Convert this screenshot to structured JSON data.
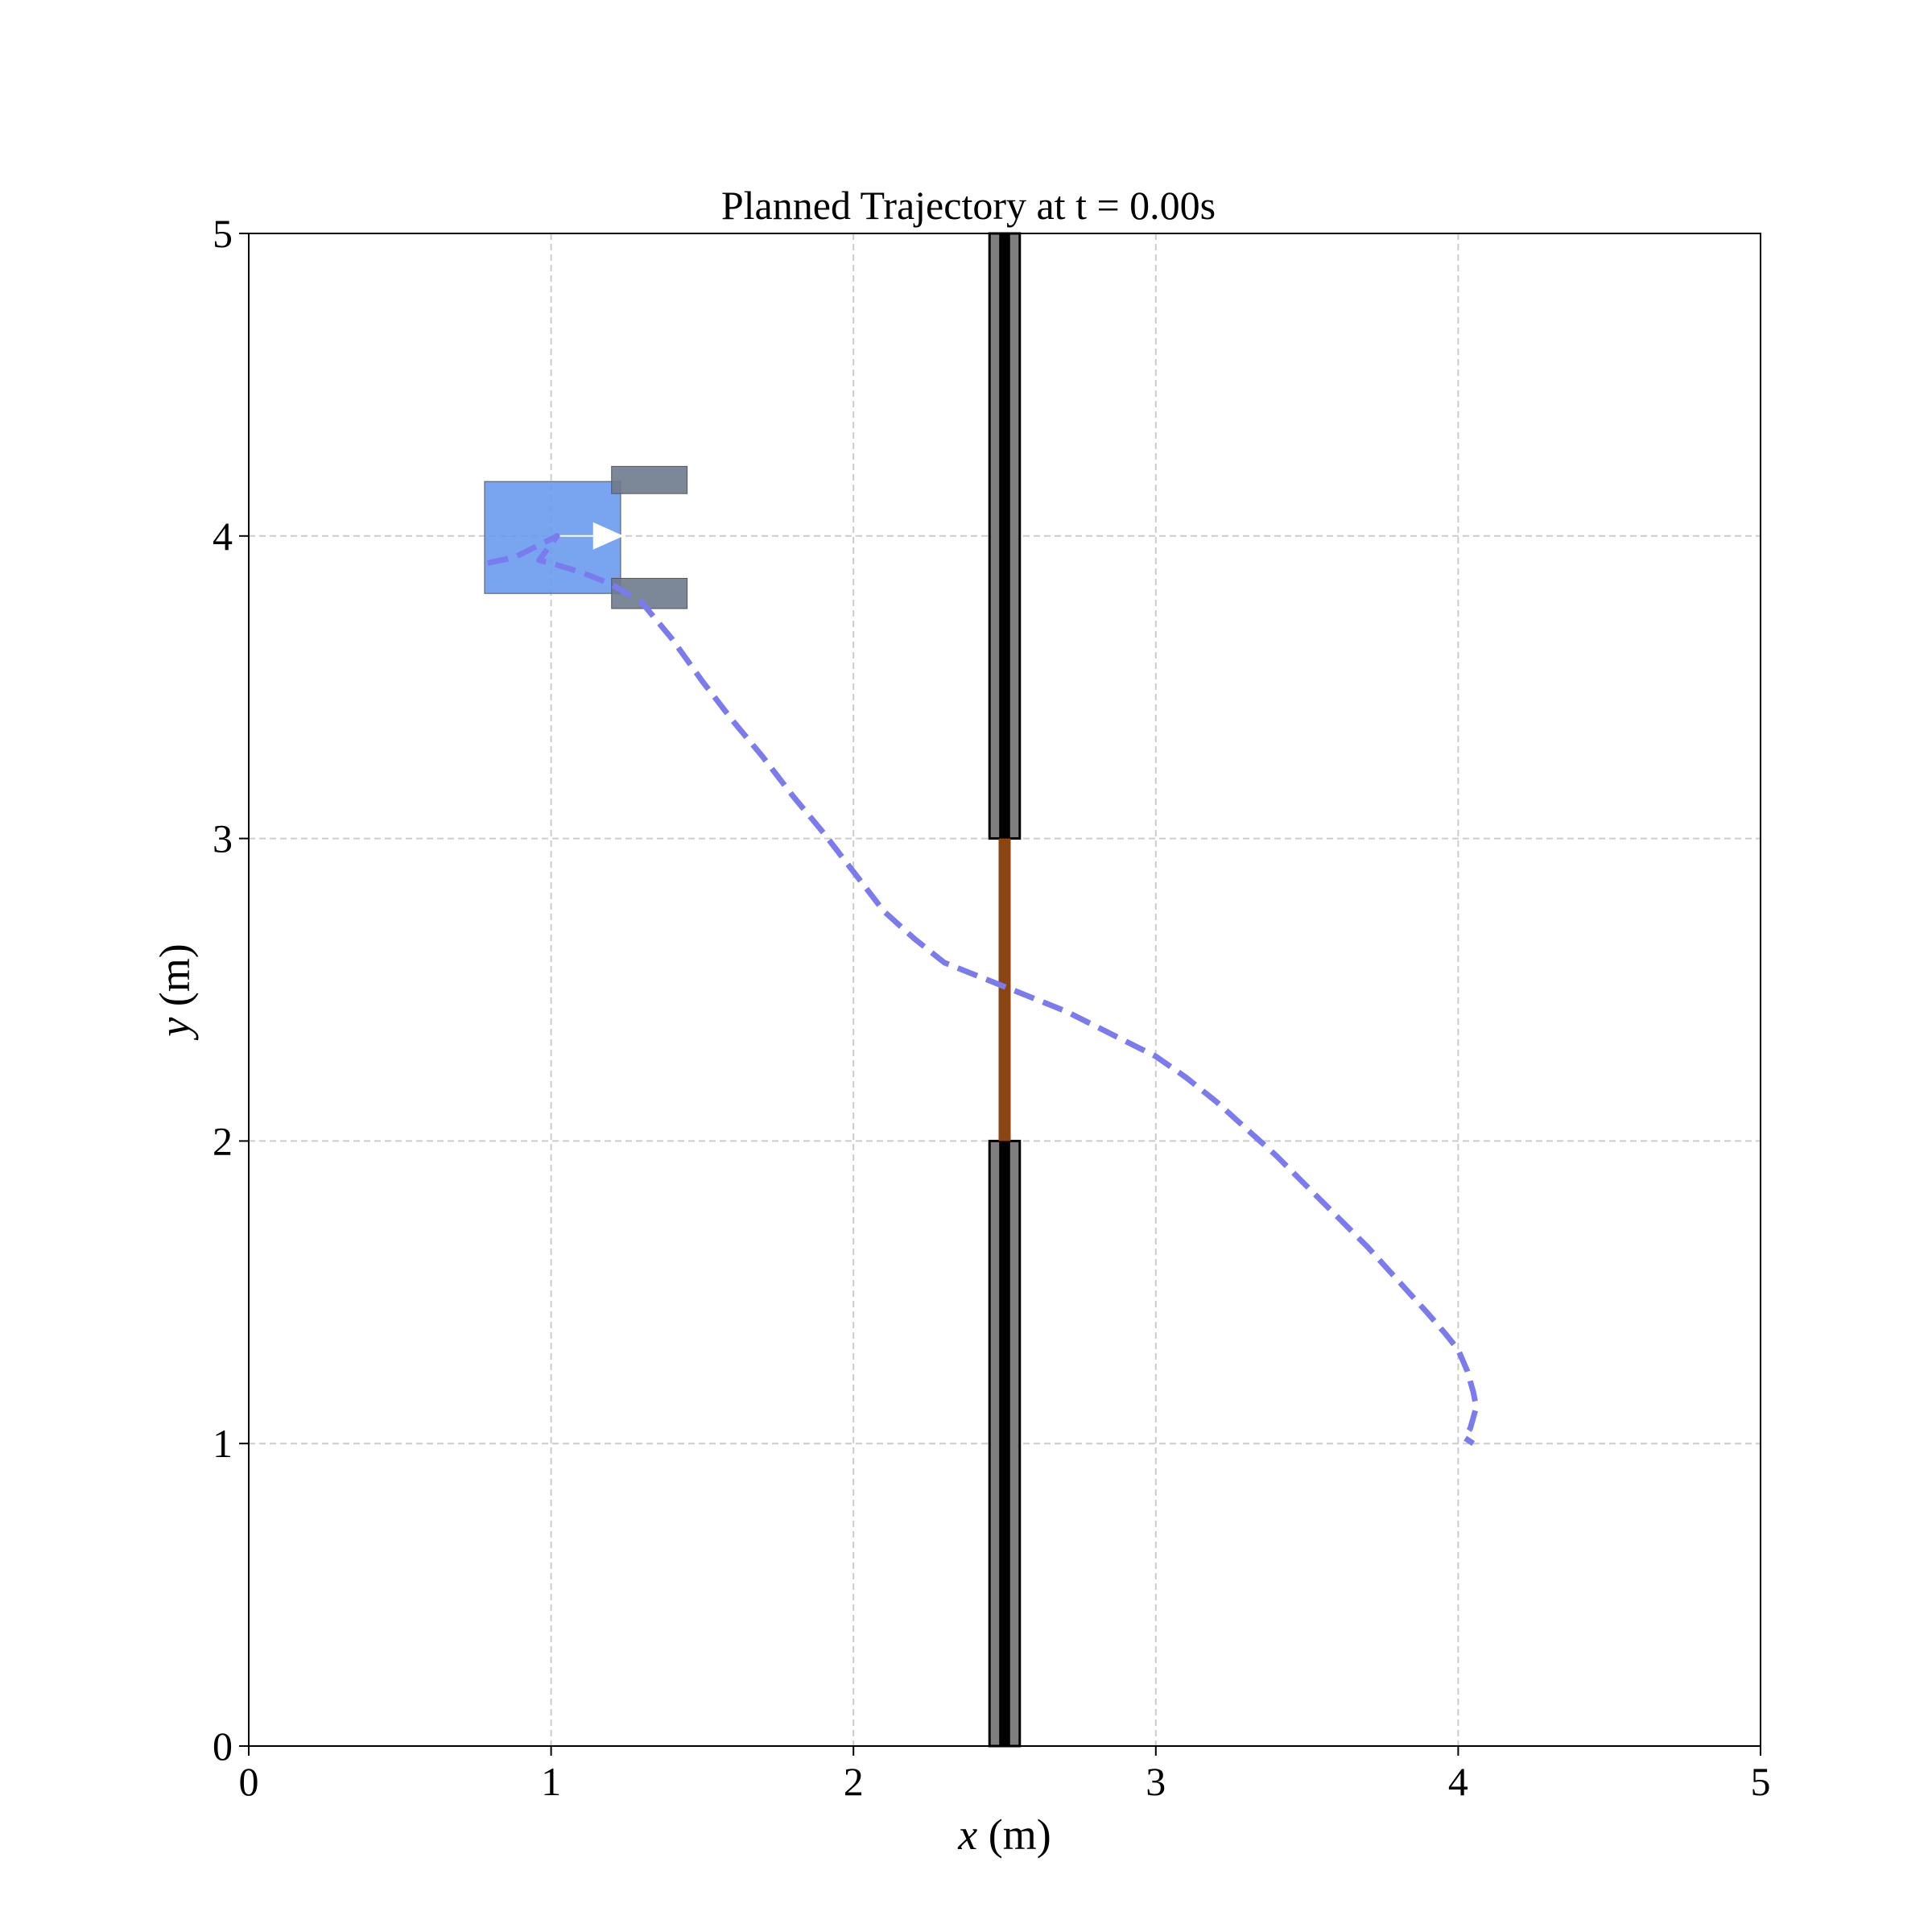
{
  "chart_data": {
    "type": "line",
    "title": "Planned Trajectory at t = 0.00s",
    "xlabel_var": "x",
    "xlabel_unit": " (m)",
    "ylabel_var": "y",
    "ylabel_unit": " (m)",
    "xlim": [
      0,
      5
    ],
    "ylim": [
      0,
      5
    ],
    "xticks": [
      "0",
      "1",
      "2",
      "3",
      "4",
      "5"
    ],
    "yticks": [
      "0",
      "1",
      "2",
      "3",
      "4",
      "5"
    ],
    "grid": true,
    "grid_style": "dashed",
    "series": [
      {
        "style": "dashed",
        "color": "#7b7bf0",
        "points": [
          [
            0.79,
            3.91
          ],
          [
            0.88,
            3.93
          ],
          [
            0.96,
            3.97
          ],
          [
            1.02,
            4.0
          ],
          [
            0.96,
            3.92
          ],
          [
            1.0,
            3.91
          ],
          [
            1.1,
            3.88
          ],
          [
            1.2,
            3.84
          ],
          [
            1.3,
            3.78
          ],
          [
            1.4,
            3.66
          ],
          [
            1.5,
            3.52
          ],
          [
            1.6,
            3.39
          ],
          [
            1.7,
            3.27
          ],
          [
            1.8,
            3.14
          ],
          [
            1.9,
            3.02
          ],
          [
            2.0,
            2.89
          ],
          [
            2.1,
            2.76
          ],
          [
            2.2,
            2.67
          ],
          [
            2.3,
            2.59
          ],
          [
            2.4,
            2.55
          ],
          [
            2.5,
            2.51
          ],
          [
            2.6,
            2.47
          ],
          [
            2.7,
            2.43
          ],
          [
            2.8,
            2.38
          ],
          [
            2.9,
            2.33
          ],
          [
            3.0,
            2.28
          ],
          [
            3.1,
            2.21
          ],
          [
            3.2,
            2.13
          ],
          [
            3.3,
            2.04
          ],
          [
            3.4,
            1.95
          ],
          [
            3.5,
            1.85
          ],
          [
            3.6,
            1.75
          ],
          [
            3.7,
            1.65
          ],
          [
            3.8,
            1.54
          ],
          [
            3.9,
            1.43
          ],
          [
            3.96,
            1.36
          ],
          [
            4.0,
            1.31
          ],
          [
            4.03,
            1.24
          ],
          [
            4.05,
            1.17
          ],
          [
            4.06,
            1.12
          ],
          [
            4.04,
            1.05
          ],
          [
            4.02,
            1.02
          ],
          [
            4.05,
            1.0
          ]
        ]
      }
    ],
    "walls": [
      {
        "x": 2.5,
        "y_range": [
          3.0,
          5.0
        ],
        "width": 0.1,
        "color": "#000000",
        "fill": "#7f7f7f"
      },
      {
        "x": 2.5,
        "y_range": [
          0.0,
          2.0
        ],
        "width": 0.1,
        "color": "#000000",
        "fill": "#7f7f7f"
      }
    ],
    "door": {
      "x": 2.5,
      "y_range": [
        2.0,
        3.0
      ],
      "color": "#8b4513"
    },
    "robot": {
      "body": {
        "x_range": [
          0.78,
          1.23
        ],
        "y_range": [
          3.81,
          4.18
        ],
        "color": "#6a9aee"
      },
      "grippers": [
        {
          "x_range": [
            1.2,
            1.45
          ],
          "y_range": [
            4.14,
            4.23
          ],
          "color": "#6e7a8c"
        },
        {
          "x_range": [
            1.2,
            1.45
          ],
          "y_range": [
            3.76,
            3.86
          ],
          "color": "#6e7a8c"
        }
      ],
      "heading_arrow": {
        "from": [
          1.02,
          4.0
        ],
        "to": [
          1.24,
          4.0
        ],
        "color": "#ffffff"
      }
    }
  }
}
